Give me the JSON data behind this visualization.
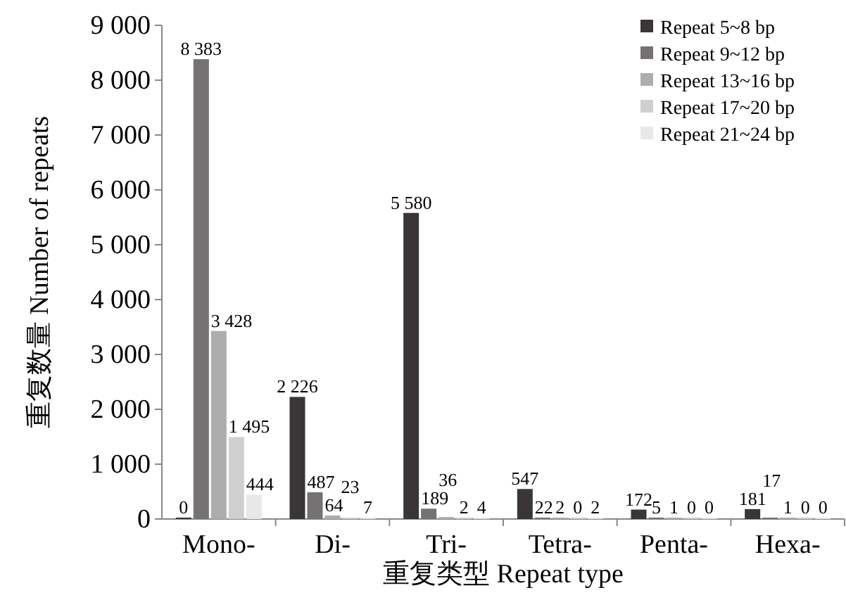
{
  "chart_data": {
    "type": "bar",
    "xlabel": "重复类型 Repeat type",
    "ylabel": "重复数量 Number of repeats",
    "categories": [
      "Mono-",
      "Di-",
      "Tri-",
      "Tetra-",
      "Penta-",
      "Hexa-"
    ],
    "series": [
      {
        "name": "Repeat 5~8 bp",
        "color": "#3a3536",
        "values": [
          0,
          2226,
          5580,
          547,
          172,
          181
        ],
        "value_labels": [
          "0",
          "2 226",
          "5 580",
          "547",
          "172",
          "181"
        ]
      },
      {
        "name": "Repeat 9~12 bp",
        "color": "#767172",
        "values": [
          8383,
          487,
          189,
          22,
          5,
          17
        ],
        "value_labels": [
          "8 383",
          "487",
          "189",
          "22",
          "5",
          "17"
        ]
      },
      {
        "name": "Repeat 13~16 bp",
        "color": "#adadad",
        "values": [
          3428,
          64,
          36,
          2,
          1,
          1
        ],
        "value_labels": [
          "3 428",
          "64",
          "36",
          "2",
          "1",
          "1"
        ]
      },
      {
        "name": "Repeat 17~20 bp",
        "color": "#cfcfcf",
        "values": [
          1495,
          23,
          2,
          0,
          0,
          0
        ],
        "value_labels": [
          "1 495",
          "23",
          "2",
          "0",
          "0",
          "0"
        ]
      },
      {
        "name": "Repeat 21~24 bp",
        "color": "#e8e8e8",
        "values": [
          444,
          7,
          4,
          2,
          0,
          0
        ],
        "value_labels": [
          "444",
          "7",
          "4",
          "2",
          "0",
          "0"
        ]
      }
    ],
    "ylim": [
      0,
      9000
    ],
    "yticks": [
      0,
      {
        "value": 1000,
        "label": "1 000"
      },
      {
        "value": 2000,
        "label": "2 000"
      },
      {
        "value": 3000,
        "label": "3 000"
      },
      {
        "value": 4000,
        "label": "4 000"
      },
      {
        "value": 5000,
        "label": "5 000"
      },
      {
        "value": 6000,
        "label": "6 000"
      },
      {
        "value": 7000,
        "label": "7 000"
      },
      {
        "value": 8000,
        "label": "8 000"
      },
      {
        "value": 9000,
        "label": "9 000"
      }
    ],
    "legend": "top right",
    "grid": false
  }
}
